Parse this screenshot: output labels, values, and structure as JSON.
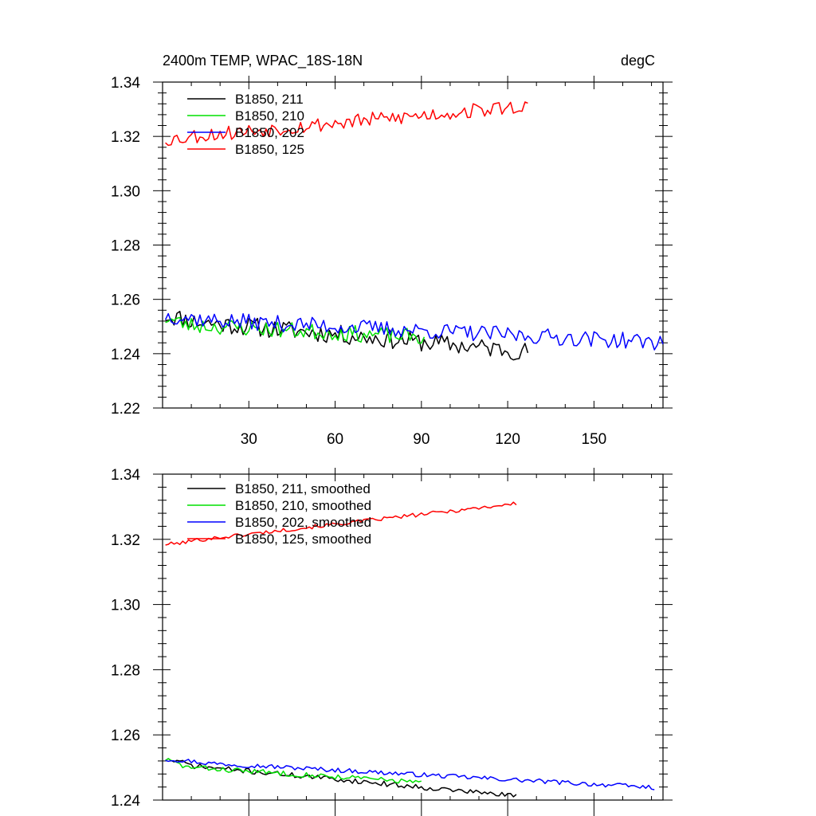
{
  "chart_data": [
    {
      "type": "line",
      "title_left": "2400m TEMP, WPAC_18S-18N",
      "title_right": "degC",
      "xlim": [
        0,
        174
      ],
      "ylim": [
        1.22,
        1.34
      ],
      "xticks": [
        30,
        60,
        90,
        120,
        150
      ],
      "xtick_labels": [
        "30",
        "60",
        "90",
        "120",
        "150"
      ],
      "yticks": [
        1.22,
        1.24,
        1.26,
        1.28,
        1.3,
        1.32,
        1.34
      ],
      "ytick_labels": [
        "1.22",
        "1.24",
        "1.26",
        "1.28",
        "1.30",
        "1.32",
        "1.34"
      ],
      "legend_position": "top-left",
      "series": [
        {
          "name": "B1850, 211",
          "color": "#000000",
          "x_start": 1,
          "x_end": 127,
          "y_start": 1.254,
          "y_end": 1.242,
          "mean_level": 1.2455,
          "noise": 0.0035,
          "seed": 11
        },
        {
          "name": "B1850, 210",
          "color": "#00e000",
          "x_start": 1,
          "x_end": 91,
          "y_start": 1.253,
          "y_end": 1.248,
          "mean_level": 1.2465,
          "noise": 0.003,
          "seed": 23
        },
        {
          "name": "B1850, 202",
          "color": "#0000ff",
          "x_start": 1,
          "x_end": 174,
          "y_start": 1.254,
          "y_end": 1.245,
          "mean_level": 1.2478,
          "noise": 0.003,
          "seed": 37
        },
        {
          "name": "B1850, 125",
          "color": "#ff0000",
          "x_start": 1,
          "x_end": 127,
          "y_start": 1.319,
          "y_end": 1.331,
          "mean_level": 1.3255,
          "noise": 0.0028,
          "seed": 53
        }
      ]
    },
    {
      "type": "line",
      "xlim": [
        0,
        174
      ],
      "ylim": [
        1.24,
        1.34
      ],
      "xticks": [
        30,
        60,
        90,
        120,
        150
      ],
      "xtick_labels": [],
      "yticks": [
        1.24,
        1.26,
        1.28,
        1.3,
        1.32,
        1.34
      ],
      "ytick_labels": [
        "1.24",
        "1.26",
        "1.28",
        "1.30",
        "1.32",
        "1.34"
      ],
      "legend_position": "top-left",
      "series": [
        {
          "name": "B1850, 211, smoothed",
          "color": "#000000",
          "x_start": 1,
          "x_end": 123,
          "y_start": 1.2525,
          "y_end": 1.2425,
          "mean_level": 1.245,
          "noise": 0.0008,
          "seed": 71
        },
        {
          "name": "B1850, 210, smoothed",
          "color": "#00e000",
          "x_start": 1,
          "x_end": 90,
          "y_start": 1.2525,
          "y_end": 1.2475,
          "mean_level": 1.246,
          "noise": 0.0008,
          "seed": 83
        },
        {
          "name": "B1850, 202, smoothed",
          "color": "#0000ff",
          "x_start": 1,
          "x_end": 171,
          "y_start": 1.2525,
          "y_end": 1.2443,
          "mean_level": 1.2475,
          "noise": 0.0007,
          "seed": 97
        },
        {
          "name": "B1850, 125, smoothed",
          "color": "#ff0000",
          "x_start": 1,
          "x_end": 123,
          "y_start": 1.3185,
          "y_end": 1.3308,
          "mean_level": 1.325,
          "noise": 0.0006,
          "seed": 101
        }
      ]
    }
  ]
}
